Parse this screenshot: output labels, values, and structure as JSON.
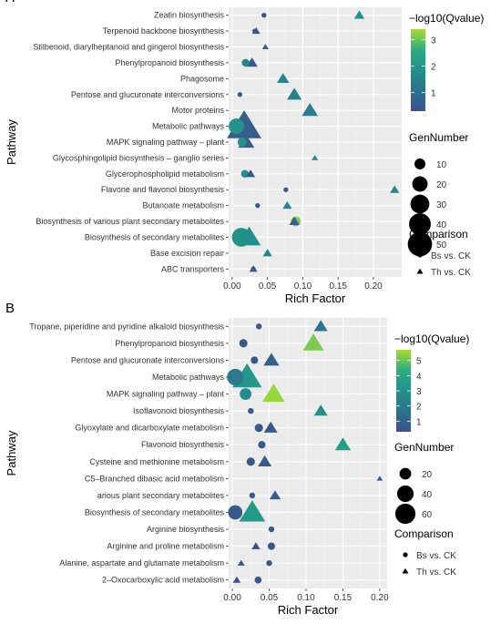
{
  "chart_data": [
    {
      "type": "scatter",
      "panel_label": "A",
      "title": "",
      "xlabel": "Rich Factor",
      "ylabel": "Pathway",
      "xlim": [
        -0.005,
        0.24
      ],
      "xticks": [
        "0.00",
        "0.05",
        "0.10",
        "0.15",
        "0.20"
      ],
      "xtick_values": [
        0,
        0.05,
        0.1,
        0.15,
        0.2
      ],
      "categories": [
        "Zeatin biosynthesis",
        "Terpenoid backbone biosynthesis",
        "Stilbenoid, diarylheptanoid and gingerol biosynthesis",
        "Phenylpropanoid biosynthesis",
        "Phagosome",
        "Pentose and glucuronate interconversions",
        "Motor proteins",
        "Metabolic pathways",
        "MAPK signaling pathway – plant",
        "Glycosphingolipid biosynthesis – ganglio series",
        "Glycerophospholipid metabolism",
        "Flavone and flavonol biosynthesis",
        "Butanoate metabolism",
        "Biosynthesis of various plant secondary metabolites",
        "Biosynthesis of secondary metabolites",
        "Base excision repair",
        "ABC transporters"
      ],
      "points": [
        {
          "pathway": "Zeatin biosynthesis",
          "comparison": "Bs vs. CK",
          "rich_factor": 0.045,
          "gene_number": 2,
          "neglog10q": 0.5
        },
        {
          "pathway": "Zeatin biosynthesis",
          "comparison": "Th vs. CK",
          "rich_factor": 0.18,
          "gene_number": 5,
          "neglog10q": 1.8
        },
        {
          "pathway": "Terpenoid backbone biosynthesis",
          "comparison": "Bs vs. CK",
          "rich_factor": 0.032,
          "gene_number": 2,
          "neglog10q": 0.5
        },
        {
          "pathway": "Terpenoid backbone biosynthesis",
          "comparison": "Th vs. CK",
          "rich_factor": 0.034,
          "gene_number": 3,
          "neglog10q": 0.4
        },
        {
          "pathway": "Stilbenoid, diarylheptanoid and gingerol biosynthesis",
          "comparison": "Th vs. CK",
          "rich_factor": 0.047,
          "gene_number": 2,
          "neglog10q": 0.6
        },
        {
          "pathway": "Phenylpropanoid biosynthesis",
          "comparison": "Bs vs. CK",
          "rich_factor": 0.019,
          "gene_number": 5,
          "neglog10q": 1.6
        },
        {
          "pathway": "Phenylpropanoid biosynthesis",
          "comparison": "Th vs. CK",
          "rich_factor": 0.028,
          "gene_number": 6,
          "neglog10q": 0.5
        },
        {
          "pathway": "Phagosome",
          "comparison": "Th vs. CK",
          "rich_factor": 0.072,
          "gene_number": 7,
          "neglog10q": 1.6
        },
        {
          "pathway": "Pentose and glucuronate interconversions",
          "comparison": "Bs vs. CK",
          "rich_factor": 0.011,
          "gene_number": 2,
          "neglog10q": 0.5
        },
        {
          "pathway": "Pentose and glucuronate interconversions",
          "comparison": "Th vs. CK",
          "rich_factor": 0.088,
          "gene_number": 10,
          "neglog10q": 1.5
        },
        {
          "pathway": "Motor proteins",
          "comparison": "Th vs. CK",
          "rich_factor": 0.11,
          "gene_number": 12,
          "neglog10q": 1.3
        },
        {
          "pathway": "Metabolic pathways",
          "comparison": "Bs vs. CK",
          "rich_factor": 0.006,
          "gene_number": 20,
          "neglog10q": 1.9
        },
        {
          "pathway": "Metabolic pathways",
          "comparison": "Th vs. CK",
          "rich_factor": 0.017,
          "gene_number": 55,
          "neglog10q": 0.6
        },
        {
          "pathway": "MAPK signaling pathway – plant",
          "comparison": "Bs vs. CK",
          "rich_factor": 0.014,
          "gene_number": 7,
          "neglog10q": 1.9
        },
        {
          "pathway": "MAPK signaling pathway – plant",
          "comparison": "Th vs. CK",
          "rich_factor": 0.02,
          "gene_number": 12,
          "neglog10q": 0.6
        },
        {
          "pathway": "Glycosphingolipid biosynthesis – ganglio series",
          "comparison": "Th vs. CK",
          "rich_factor": 0.117,
          "gene_number": 2,
          "neglog10q": 1.6
        },
        {
          "pathway": "Glycerophospholipid metabolism",
          "comparison": "Bs vs. CK",
          "rich_factor": 0.018,
          "gene_number": 5,
          "neglog10q": 1.7
        },
        {
          "pathway": "Glycerophospholipid metabolism",
          "comparison": "Th vs. CK",
          "rich_factor": 0.026,
          "gene_number": 4,
          "neglog10q": 0.5
        },
        {
          "pathway": "Flavone and flavonol biosynthesis",
          "comparison": "Bs vs. CK",
          "rich_factor": 0.076,
          "gene_number": 2,
          "neglog10q": 0.5
        },
        {
          "pathway": "Flavone and flavonol biosynthesis",
          "comparison": "Th vs. CK",
          "rich_factor": 0.23,
          "gene_number": 4,
          "neglog10q": 1.6
        },
        {
          "pathway": "Butanoate metabolism",
          "comparison": "Bs vs. CK",
          "rich_factor": 0.036,
          "gene_number": 2,
          "neglog10q": 0.5
        },
        {
          "pathway": "Butanoate metabolism",
          "comparison": "Th vs. CK",
          "rich_factor": 0.078,
          "gene_number": 4,
          "neglog10q": 1.6
        },
        {
          "pathway": "Biosynthesis of various plant secondary metabolites",
          "comparison": "Bs vs. CK",
          "rich_factor": 0.09,
          "gene_number": 8,
          "neglog10q": 3.1
        },
        {
          "pathway": "Biosynthesis of various plant secondary metabolites",
          "comparison": "Th vs. CK",
          "rich_factor": 0.088,
          "gene_number": 5,
          "neglog10q": 0.6
        },
        {
          "pathway": "Biosynthesis of secondary metabolites",
          "comparison": "Bs vs. CK",
          "rich_factor": 0.013,
          "gene_number": 30,
          "neglog10q": 1.9
        },
        {
          "pathway": "Biosynthesis of secondary metabolites",
          "comparison": "Th vs. CK",
          "rich_factor": 0.024,
          "gene_number": 25,
          "neglog10q": 1.8
        },
        {
          "pathway": "Base excision repair",
          "comparison": "Th vs. CK",
          "rich_factor": 0.05,
          "gene_number": 4,
          "neglog10q": 1.6
        },
        {
          "pathway": "ABC transporters",
          "comparison": "Bs vs. CK",
          "rich_factor": 0.03,
          "gene_number": 2,
          "neglog10q": 0.5
        },
        {
          "pathway": "ABC transporters",
          "comparison": "Th vs. CK",
          "rich_factor": 0.03,
          "gene_number": 3,
          "neglog10q": 0.5
        }
      ],
      "color_legend": {
        "title": "−log10(Qvalue)",
        "ticks": [
          "1",
          "2",
          "3"
        ],
        "tick_values": [
          1,
          2,
          3
        ],
        "min": 0.3,
        "max": 3.4
      },
      "size_legend": {
        "title": "GenNumber",
        "labels": [
          "10",
          "20",
          "30",
          "40",
          "50"
        ],
        "values": [
          10,
          20,
          30,
          40,
          50
        ],
        "max": 55
      },
      "shape_legend": {
        "title": "Comparison",
        "items": [
          "Bs vs. CK",
          "Th vs. CK"
        ]
      },
      "grid": true,
      "legend_position": "right"
    },
    {
      "type": "scatter",
      "panel_label": "B",
      "title": "",
      "xlabel": "Rich Factor",
      "ylabel": "Pathway",
      "xlim": [
        -0.005,
        0.21
      ],
      "xticks": [
        "0.00",
        "0.05",
        "0.10",
        "0.15",
        "0.20"
      ],
      "xtick_values": [
        0,
        0.05,
        0.1,
        0.15,
        0.2
      ],
      "categories": [
        "Tropane, piperidine and pyridine alkaloid biosynthesis",
        "Phenylpropanoid biosynthesis",
        "Pentose and glucuronate interconversions",
        "Metabolic pathways",
        "MAPK signaling pathway – plant",
        "Isoflavonoid biosynthesis",
        "Glyoxylate and dicarboxylate metabolism",
        "Flavonoid biosynthesis",
        "Cysteine and methionine metabolism",
        "C5–Branched dibasic acid metabolism",
        "arious plant secondary metabolites",
        "Biosynthesis of secondary metabolites",
        "Arginine biosynthesis",
        "Arginine and proline metabolism",
        "Alanine, aspartate and glutamate metabolism",
        "2–Oxocarboxylic acid metabolism"
      ],
      "points": [
        {
          "pathway": "Tropane, piperidine and pyridine alkaloid biosynthesis",
          "comparison": "Bs vs. CK",
          "rich_factor": 0.036,
          "gene_number": 5,
          "neglog10q": 0.5
        },
        {
          "pathway": "Tropane, piperidine and pyridine alkaloid biosynthesis",
          "comparison": "Th vs. CK",
          "rich_factor": 0.12,
          "gene_number": 15,
          "neglog10q": 1.8
        },
        {
          "pathway": "Phenylpropanoid biosynthesis",
          "comparison": "Bs vs. CK",
          "rich_factor": 0.015,
          "gene_number": 10,
          "neglog10q": 0.5
        },
        {
          "pathway": "Phenylpropanoid biosynthesis",
          "comparison": "Th vs. CK",
          "rich_factor": 0.11,
          "gene_number": 35,
          "neglog10q": 5.2
        },
        {
          "pathway": "Pentose and glucuronate interconversions",
          "comparison": "Bs vs. CK",
          "rich_factor": 0.03,
          "gene_number": 8,
          "neglog10q": 0.5
        },
        {
          "pathway": "Pentose and glucuronate interconversions",
          "comparison": "Th vs. CK",
          "rich_factor": 0.053,
          "gene_number": 20,
          "neglog10q": 0.9
        },
        {
          "pathway": "Metabolic pathways",
          "comparison": "Bs vs. CK",
          "rich_factor": 0.004,
          "gene_number": 40,
          "neglog10q": 2.0
        },
        {
          "pathway": "Metabolic pathways",
          "comparison": "Th vs. CK",
          "rich_factor": 0.02,
          "gene_number": 70,
          "neglog10q": 3.3
        },
        {
          "pathway": "MAPK signaling pathway – plant",
          "comparison": "Bs vs. CK",
          "rich_factor": 0.018,
          "gene_number": 20,
          "neglog10q": 2.8
        },
        {
          "pathway": "MAPK signaling pathway – plant",
          "comparison": "Th vs. CK",
          "rich_factor": 0.056,
          "gene_number": 40,
          "neglog10q": 5.5
        },
        {
          "pathway": "Isoflavonoid biosynthesis",
          "comparison": "Bs vs. CK",
          "rich_factor": 0.025,
          "gene_number": 5,
          "neglog10q": 0.5
        },
        {
          "pathway": "Isoflavonoid biosynthesis",
          "comparison": "Th vs. CK",
          "rich_factor": 0.12,
          "gene_number": 15,
          "neglog10q": 2.9
        },
        {
          "pathway": "Glyoxylate and dicarboxylate metabolism",
          "comparison": "Bs vs. CK",
          "rich_factor": 0.036,
          "gene_number": 10,
          "neglog10q": 0.5
        },
        {
          "pathway": "Glyoxylate and dicarboxylate metabolism",
          "comparison": "Th vs. CK",
          "rich_factor": 0.052,
          "gene_number": 15,
          "neglog10q": 0.6
        },
        {
          "pathway": "Flavonoid biosynthesis",
          "comparison": "Bs vs. CK",
          "rich_factor": 0.04,
          "gene_number": 8,
          "neglog10q": 0.5
        },
        {
          "pathway": "Flavonoid biosynthesis",
          "comparison": "Th vs. CK",
          "rich_factor": 0.15,
          "gene_number": 20,
          "neglog10q": 3.6
        },
        {
          "pathway": "Cysteine and methionine metabolism",
          "comparison": "Bs vs. CK",
          "rich_factor": 0.025,
          "gene_number": 10,
          "neglog10q": 0.5
        },
        {
          "pathway": "Cysteine and methionine metabolism",
          "comparison": "Th vs. CK",
          "rich_factor": 0.044,
          "gene_number": 15,
          "neglog10q": 0.6
        },
        {
          "pathway": "C5–Branched dibasic acid metabolism",
          "comparison": "Th vs. CK",
          "rich_factor": 0.2,
          "gene_number": 3,
          "neglog10q": 0.8
        },
        {
          "pathway": "arious plant secondary metabolites",
          "comparison": "Bs vs. CK",
          "rich_factor": 0.027,
          "gene_number": 5,
          "neglog10q": 0.5
        },
        {
          "pathway": "arious plant secondary metabolites",
          "comparison": "Th vs. CK",
          "rich_factor": 0.058,
          "gene_number": 10,
          "neglog10q": 0.7
        },
        {
          "pathway": "Biosynthesis of secondary metabolites",
          "comparison": "Bs vs. CK",
          "rich_factor": 0.004,
          "gene_number": 30,
          "neglog10q": 0.6
        },
        {
          "pathway": "Biosynthesis of secondary metabolites",
          "comparison": "Th vs. CK",
          "rich_factor": 0.027,
          "gene_number": 55,
          "neglog10q": 3.4
        },
        {
          "pathway": "Arginine biosynthesis",
          "comparison": "Bs vs. CK",
          "rich_factor": 0.053,
          "gene_number": 5,
          "neglog10q": 0.5
        },
        {
          "pathway": "Arginine and proline metabolism",
          "comparison": "Bs vs. CK",
          "rich_factor": 0.053,
          "gene_number": 8,
          "neglog10q": 0.5
        },
        {
          "pathway": "Arginine and proline metabolism",
          "comparison": "Th vs. CK",
          "rich_factor": 0.032,
          "gene_number": 6,
          "neglog10q": 0.4
        },
        {
          "pathway": "Alanine, aspartate and glutamate metabolism",
          "comparison": "Bs vs. CK",
          "rich_factor": 0.05,
          "gene_number": 5,
          "neglog10q": 0.5
        },
        {
          "pathway": "Alanine, aspartate and glutamate metabolism",
          "comparison": "Th vs. CK",
          "rich_factor": 0.012,
          "gene_number": 4,
          "neglog10q": 0.4
        },
        {
          "pathway": "2–Oxocarboxylic acid metabolism",
          "comparison": "Bs vs. CK",
          "rich_factor": 0.035,
          "gene_number": 7,
          "neglog10q": 0.5
        },
        {
          "pathway": "2–Oxocarboxylic acid metabolism",
          "comparison": "Th vs. CK",
          "rich_factor": 0.006,
          "gene_number": 5,
          "neglog10q": 0.4
        }
      ],
      "color_legend": {
        "title": "−log10(Qvalue)",
        "ticks": [
          "1",
          "2",
          "3",
          "4",
          "5"
        ],
        "tick_values": [
          1,
          2,
          3,
          4,
          5
        ],
        "min": 0.3,
        "max": 5.7
      },
      "size_legend": {
        "title": "GenNumber",
        "labels": [
          "20",
          "40",
          "60"
        ],
        "values": [
          20,
          40,
          60
        ],
        "max": 70
      },
      "shape_legend": {
        "title": "Comparison",
        "items": [
          "Bs vs. CK",
          "Th vs. CK"
        ]
      },
      "grid": true,
      "legend_position": "right"
    }
  ]
}
